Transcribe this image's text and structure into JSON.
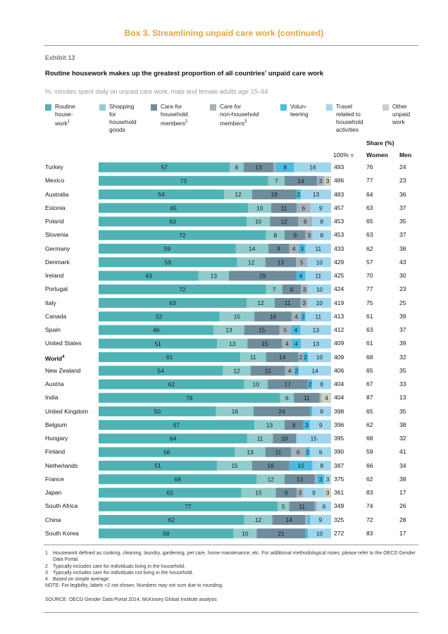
{
  "box_title": "Box 3. Streamlining unpaid care work (continued)",
  "exhibit": "Exhibit 13",
  "headline": "Routine housework makes up the greatest proportion of all countries' unpaid care work",
  "subhead": "%; minutes spent daily on unpaid care work, male and female adults age 15–64",
  "colors": {
    "routine": "#4fb3b5",
    "shopping": "#90cccc",
    "household_care": "#6e8c9c",
    "nonhousehold_care": "#a3b2bb",
    "volunteering": "#4bbbe0",
    "travel": "#a0d6ec",
    "other": "#c9d1c2"
  },
  "legend": [
    {
      "key": "routine",
      "text": "Routine\nhouse-\nwork",
      "sup": "1"
    },
    {
      "key": "shopping",
      "text": "Shopping\nfor\nhousehold\ngoods",
      "sup": ""
    },
    {
      "key": "household_care",
      "text": "Care for\nhousehold\nmembers",
      "sup": "2"
    },
    {
      "key": "nonhousehold_care",
      "text": "Care for\nnon-household\nmembers",
      "sup": "3"
    },
    {
      "key": "volunteering",
      "text": "Volun-\nteering",
      "sup": ""
    },
    {
      "key": "travel",
      "text": "Travel\nrelated to\nhousehold\nactivities",
      "sup": ""
    },
    {
      "key": "other",
      "text": "Other\nunpaid\nwork",
      "sup": ""
    }
  ],
  "header": {
    "share": "Share (%)",
    "hundred": "100% =",
    "women": "Women",
    "men": "Men"
  },
  "chart_data": {
    "type": "bar",
    "orientation": "horizontal",
    "stacked": true,
    "units": "%",
    "series_names": [
      "Routine housework",
      "Shopping for household goods",
      "Care for household members",
      "Care for non-household members",
      "Volunteering",
      "Travel related to household activities",
      "Other unpaid work"
    ],
    "rows": [
      {
        "country": "Turkey",
        "sup": "",
        "bold": false,
        "values": [
          57,
          6,
          13,
          1,
          8,
          16,
          0
        ],
        "total_minutes": 493,
        "women": 76,
        "men": 24
      },
      {
        "country": "Mexico",
        "sup": "",
        "bold": false,
        "values": [
          73,
          7,
          14,
          3,
          0,
          0,
          3
        ],
        "total_minutes": 486,
        "women": 77,
        "men": 23
      },
      {
        "country": "Australia",
        "sup": "",
        "bold": false,
        "values": [
          54,
          12,
          19,
          0,
          2,
          13,
          0
        ],
        "total_minutes": 483,
        "women": 64,
        "men": 36
      },
      {
        "country": "Estonia",
        "sup": "",
        "bold": false,
        "values": [
          65,
          10,
          11,
          6,
          0,
          9,
          0
        ],
        "total_minutes": 457,
        "women": 63,
        "men": 37
      },
      {
        "country": "Poland",
        "sup": "",
        "bold": false,
        "values": [
          63,
          10,
          12,
          6,
          0,
          8,
          0
        ],
        "total_minutes": 453,
        "women": 65,
        "men": 35
      },
      {
        "country": "Slovenia",
        "sup": "",
        "bold": false,
        "values": [
          72,
          8,
          9,
          3,
          0,
          8,
          0
        ],
        "total_minutes": 453,
        "women": 63,
        "men": 37
      },
      {
        "country": "Germany",
        "sup": "",
        "bold": false,
        "values": [
          59,
          14,
          9,
          4,
          3,
          11,
          0
        ],
        "total_minutes": 433,
        "women": 62,
        "men": 38
      },
      {
        "country": "Denmark",
        "sup": "",
        "bold": false,
        "values": [
          59,
          12,
          13,
          5,
          0,
          10,
          0
        ],
        "total_minutes": 429,
        "women": 57,
        "men": 43
      },
      {
        "country": "Ireland",
        "sup": "",
        "bold": false,
        "values": [
          43,
          13,
          29,
          0,
          4,
          11,
          0
        ],
        "total_minutes": 425,
        "women": 70,
        "men": 30
      },
      {
        "country": "Portugal",
        "sup": "",
        "bold": false,
        "values": [
          72,
          7,
          8,
          3,
          0,
          10,
          0
        ],
        "total_minutes": 424,
        "women": 77,
        "men": 23
      },
      {
        "country": "Italy",
        "sup": "",
        "bold": false,
        "values": [
          63,
          12,
          11,
          3,
          0,
          10,
          0
        ],
        "total_minutes": 419,
        "women": 75,
        "men": 25
      },
      {
        "country": "Canada",
        "sup": "",
        "bold": false,
        "values": [
          52,
          15,
          16,
          4,
          2,
          11,
          0
        ],
        "total_minutes": 413,
        "women": 61,
        "men": 39
      },
      {
        "country": "Spain",
        "sup": "",
        "bold": false,
        "values": [
          49,
          13,
          15,
          5,
          4,
          13,
          0
        ],
        "total_minutes": 412,
        "women": 63,
        "men": 37
      },
      {
        "country": "United States",
        "sup": "",
        "bold": false,
        "values": [
          51,
          13,
          15,
          4,
          4,
          13,
          0
        ],
        "total_minutes": 409,
        "women": 61,
        "men": 39
      },
      {
        "country": "World",
        "sup": "4",
        "bold": true,
        "values": [
          61,
          11,
          14,
          2,
          2,
          10,
          0
        ],
        "total_minutes": 409,
        "women": 68,
        "men": 32
      },
      {
        "country": "New Zealand",
        "sup": "",
        "bold": false,
        "values": [
          54,
          12,
          15,
          4,
          2,
          14,
          0
        ],
        "total_minutes": 406,
        "women": 65,
        "men": 35
      },
      {
        "country": "Austria",
        "sup": "",
        "bold": false,
        "values": [
          62,
          10,
          17,
          0,
          2,
          8,
          0
        ],
        "total_minutes": 404,
        "women": 67,
        "men": 33
      },
      {
        "country": "India",
        "sup": "",
        "bold": false,
        "values": [
          78,
          6,
          11,
          1,
          0,
          0,
          4
        ],
        "total_minutes": 404,
        "women": 87,
        "men": 13
      },
      {
        "country": "United Kingdom",
        "sup": "",
        "bold": false,
        "values": [
          50,
          16,
          24,
          0,
          1,
          8,
          0
        ],
        "total_minutes": 398,
        "women": 65,
        "men": 35
      },
      {
        "country": "Belgium",
        "sup": "",
        "bold": false,
        "values": [
          67,
          13,
          8,
          0,
          3,
          9,
          0
        ],
        "total_minutes": 396,
        "women": 62,
        "men": 38
      },
      {
        "country": "Hungary",
        "sup": "",
        "bold": false,
        "values": [
          64,
          11,
          10,
          0,
          0,
          15,
          0
        ],
        "total_minutes": 395,
        "women": 68,
        "men": 32
      },
      {
        "country": "Finland",
        "sup": "",
        "bold": false,
        "values": [
          58,
          13,
          11,
          6,
          2,
          9,
          0
        ],
        "total_minutes": 390,
        "women": 59,
        "men": 41
      },
      {
        "country": "Netherlands",
        "sup": "",
        "bold": false,
        "values": [
          51,
          15,
          16,
          0,
          10,
          8,
          0
        ],
        "total_minutes": 387,
        "women": 66,
        "men": 34
      },
      {
        "country": "France",
        "sup": "",
        "bold": false,
        "values": [
          68,
          12,
          13,
          1,
          3,
          3,
          0
        ],
        "total_minutes": 375,
        "women": 62,
        "men": 38
      },
      {
        "country": "Japan",
        "sup": "",
        "bold": false,
        "values": [
          62,
          15,
          9,
          3,
          0,
          9,
          3
        ],
        "total_minutes": 361,
        "women": 83,
        "men": 17
      },
      {
        "country": "South Africa",
        "sup": "",
        "bold": false,
        "values": [
          77,
          5,
          11,
          1,
          0,
          6,
          0
        ],
        "total_minutes": 349,
        "women": 74,
        "men": 26
      },
      {
        "country": "China",
        "sup": "",
        "bold": false,
        "values": [
          62,
          12,
          14,
          1,
          1,
          9,
          0
        ],
        "total_minutes": 325,
        "women": 72,
        "men": 28
      },
      {
        "country": "South Korea",
        "sup": "",
        "bold": false,
        "values": [
          58,
          10,
          21,
          0,
          1,
          10,
          0
        ],
        "total_minutes": 272,
        "women": 83,
        "men": 17
      }
    ]
  },
  "notes": [
    {
      "n": "1",
      "text": "Housework defined as cooking, cleaning, laundry, gardening, pet care, home maintenance, etc. For additional methodological notes, please refer to the OECD Gender Data Portal."
    },
    {
      "n": "2",
      "text": "Typically includes care for individuals living in the household."
    },
    {
      "n": "3",
      "text": "Typically includes care for individuals not living in the household."
    },
    {
      "n": "4",
      "text": "Based on simple average."
    },
    {
      "n": "",
      "text": "NOTE: For legibility, labels <2 not shown. Numbers may not sum due to rounding."
    }
  ],
  "source": "SOURCE: OECD Gender Data Portal 2014; McKinsey Global Institute analysis"
}
